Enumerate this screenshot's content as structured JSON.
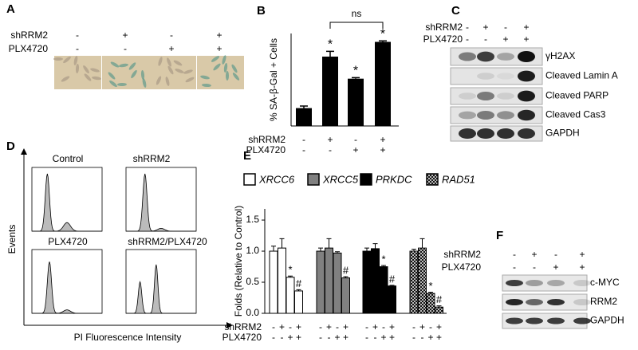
{
  "panel_labels": [
    "A",
    "B",
    "C",
    "D",
    "E",
    "F"
  ],
  "panel_a": {
    "conditions": [
      {
        "name": "shRRM2",
        "signs": [
          "-",
          "+",
          "-",
          "+"
        ]
      },
      {
        "name": "PLX4720",
        "signs": [
          "-",
          "-",
          "+",
          "+"
        ]
      }
    ]
  },
  "chart_data": [
    {
      "type": "bar",
      "y_label": "% SA-β-Gal + Cells",
      "values": [
        17,
        66,
        45,
        80
      ],
      "errors": [
        2,
        5,
        1,
        1
      ],
      "annotations": [
        null,
        "*",
        "*",
        "*"
      ],
      "comparison_label": "ns",
      "ylim": [
        0,
        88
      ],
      "color": "#000000",
      "conditions": [
        {
          "name": "shRRM2",
          "signs": [
            "-",
            "+",
            "-",
            "+"
          ]
        },
        {
          "name": "PLX4720",
          "signs": [
            "-",
            "-",
            "+",
            "+"
          ]
        }
      ]
    },
    {
      "type": "grouped_bar",
      "y_label": "Folds (Relative to Control)",
      "ylim": [
        0,
        1.68
      ],
      "yticks": [
        {
          "value": 0,
          "label": "0.0"
        },
        {
          "value": 0.5,
          "label": "0.5"
        },
        {
          "value": 1,
          "label": "1.0"
        },
        {
          "value": 1.5,
          "label": "1.5"
        }
      ],
      "series": [
        {
          "name": "XRCC6",
          "color": "#ffffff",
          "values": [
            1.0,
            1.05,
            0.58,
            0.36
          ],
          "errors": [
            0.08,
            0.15,
            0.02,
            0.02
          ],
          "annotations": [
            null,
            null,
            "*",
            "#"
          ]
        },
        {
          "name": "XRCC5",
          "color": "#808080",
          "values": [
            1.0,
            1.05,
            0.97,
            0.57
          ],
          "errors": [
            0.05,
            0.15,
            0.02,
            0.02
          ],
          "annotations": [
            null,
            null,
            null,
            "#"
          ]
        },
        {
          "name": "PRKDC",
          "color": "#000000",
          "values": [
            1.0,
            1.04,
            0.75,
            0.44
          ],
          "errors": [
            0.05,
            0.08,
            0.02,
            0.01
          ],
          "annotations": [
            null,
            null,
            "*",
            "#"
          ]
        },
        {
          "name": "RAD51",
          "color": "#ffffff",
          "pattern": "crosshatch",
          "values": [
            1.0,
            1.05,
            0.32,
            0.1
          ],
          "errors": [
            0.03,
            0.15,
            0.02,
            0.02
          ],
          "annotations": [
            null,
            null,
            "*",
            "#"
          ]
        }
      ],
      "conditions": [
        {
          "name": "shRRM2",
          "signs": [
            "-",
            "+",
            "-",
            "+"
          ]
        },
        {
          "name": "PLX4720",
          "signs": [
            "-",
            "-",
            "+",
            "+"
          ]
        }
      ]
    }
  ],
  "panel_c": {
    "conditions": [
      {
        "name": "shRRM2",
        "signs": [
          "-",
          "+",
          "-",
          "+"
        ]
      },
      {
        "name": "PLX4720",
        "signs": [
          "-",
          "-",
          "+",
          "+"
        ]
      }
    ],
    "blots": [
      "γH2AX",
      "Cleaved Lamin A",
      "Cleaved PARP",
      "Cleaved Cas3",
      "GAPDH"
    ]
  },
  "panel_d": {
    "y_label": "Events",
    "x_label": "PI Fluorescence Intensity",
    "histograms": [
      "Control",
      "shRRM2",
      "PLX4720",
      "shRRM2/PLX4720"
    ]
  },
  "panel_f": {
    "conditions": [
      {
        "name": "shRRM2",
        "signs": [
          "-",
          "+",
          "-",
          "+"
        ]
      },
      {
        "name": "PLX4720",
        "signs": [
          "-",
          "-",
          "+",
          "+"
        ]
      }
    ],
    "blots": [
      "c-MYC",
      "RRM2",
      "GAPDH"
    ]
  }
}
